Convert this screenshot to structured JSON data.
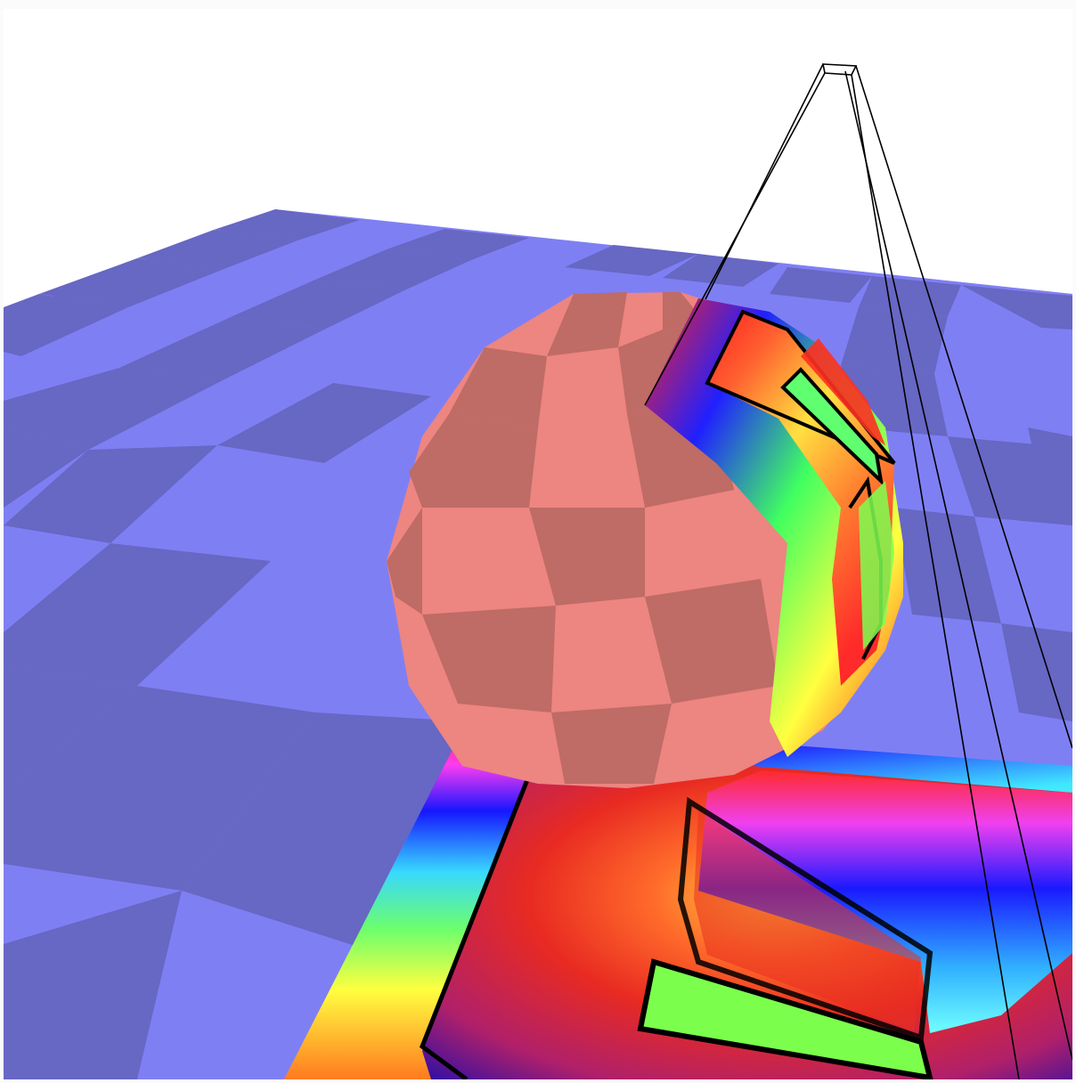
{
  "scene": {
    "description_label": "",
    "colors": {
      "background": "#ffffff",
      "ground_light": "#7f7ff4",
      "ground_dark": "#6767c4",
      "sphere_light": "#ed8580",
      "sphere_dark": "#bf6b66",
      "frustum_line": "#000000"
    },
    "objects": [
      {
        "name": "checker-ground-plane",
        "kind": "checkerboard plane"
      },
      {
        "name": "checker-sphere",
        "kind": "faceted sphere"
      },
      {
        "name": "projected-rainbow-texture-ground",
        "kind": "projected texture on plane"
      },
      {
        "name": "projected-rainbow-texture-sphere",
        "kind": "projected texture on sphere"
      },
      {
        "name": "projector-frustum",
        "kind": "wireframe frustum"
      }
    ]
  }
}
